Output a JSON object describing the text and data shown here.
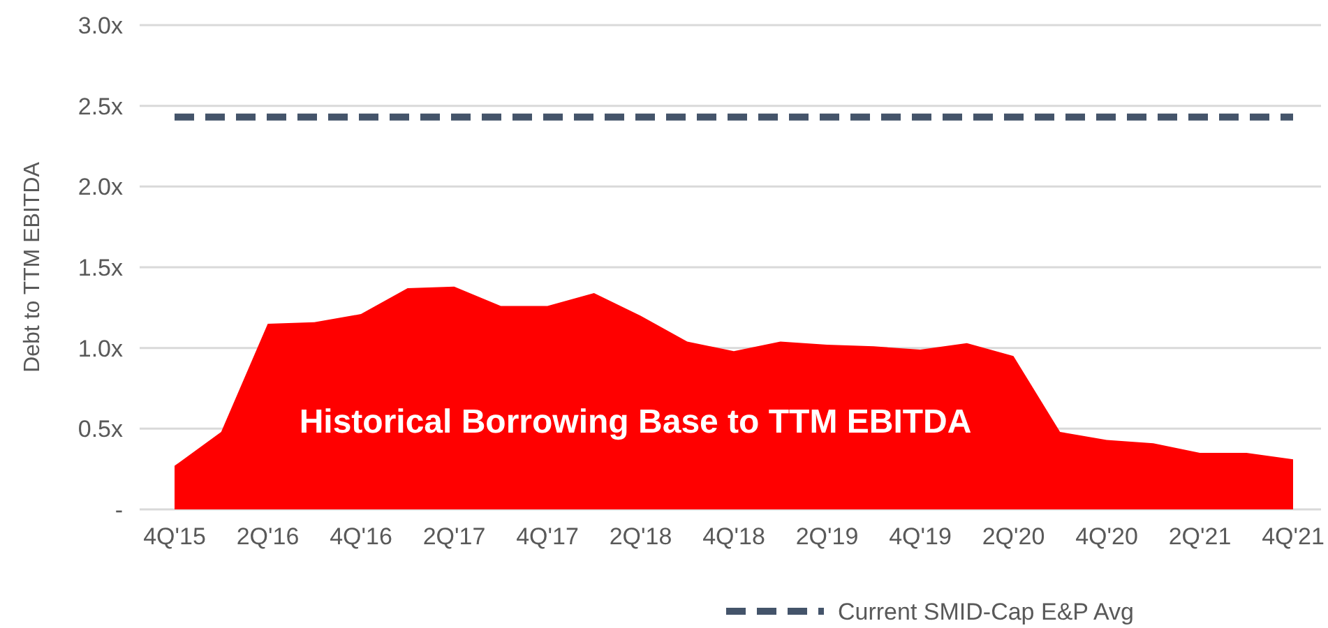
{
  "chart_data": {
    "type": "area",
    "ylabel": "Debt to TTM EBITDA",
    "categories": [
      "4Q'15",
      null,
      "2Q'16",
      null,
      "4Q'16",
      null,
      "2Q'17",
      null,
      "4Q'17",
      null,
      "2Q'18",
      null,
      "4Q'18",
      null,
      "2Q'19",
      null,
      "4Q'19",
      null,
      "2Q'20",
      null,
      "4Q'20",
      null,
      "2Q'21",
      null,
      "4Q'21"
    ],
    "series": [
      {
        "color": "#ff0000",
        "values": [
          0.27,
          0.48,
          1.15,
          1.16,
          1.21,
          1.37,
          1.38,
          1.26,
          1.26,
          1.34,
          1.2,
          1.04,
          0.98,
          1.04,
          1.02,
          1.01,
          0.99,
          1.03,
          0.95,
          0.48,
          0.43,
          0.41,
          0.35,
          0.35,
          0.31
        ]
      },
      {
        "type": "line",
        "name": "Current SMID-Cap E&P Avg",
        "color": "#44546a",
        "line_style": "dashed",
        "values": [
          2.43,
          2.43,
          2.43,
          2.43,
          2.43,
          2.43,
          2.43,
          2.43,
          2.43,
          2.43,
          2.43,
          2.43,
          2.43,
          2.43,
          2.43,
          2.43,
          2.43,
          2.43,
          2.43,
          2.43,
          2.43,
          2.43,
          2.43,
          2.43,
          2.43
        ]
      }
    ],
    "ylim": [
      0,
      3
    ],
    "yticks": [
      {
        "value": 0,
        "label": "-"
      },
      {
        "value": 0.5,
        "label": "0.5x"
      },
      {
        "value": 1,
        "label": "1.0x"
      },
      {
        "value": 1.5,
        "label": "1.5x"
      },
      {
        "value": 2,
        "label": "2.0x"
      },
      {
        "value": 2.5,
        "label": "2.5x"
      },
      {
        "value": 3,
        "label": "3.0x"
      }
    ],
    "grid": "y",
    "legend": "bottom",
    "annotations": [
      "Historical Borrowing Base to TTM EBITDA"
    ]
  }
}
